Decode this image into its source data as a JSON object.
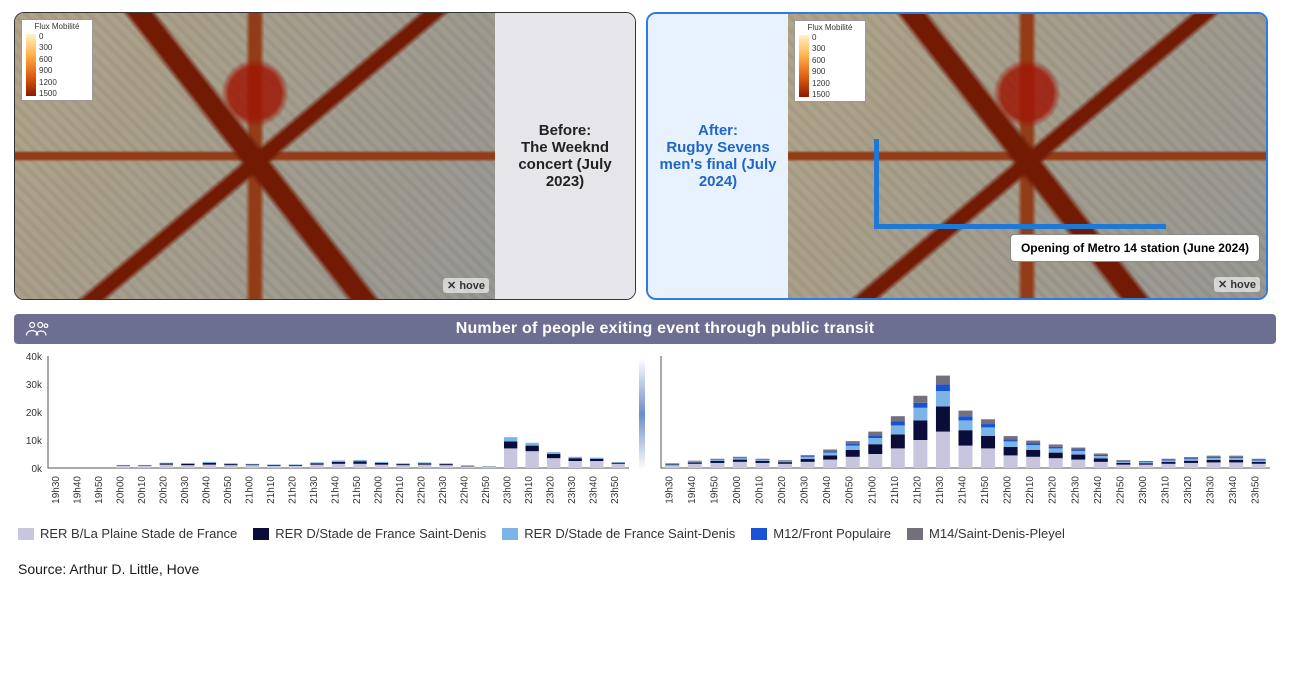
{
  "before_panel": {
    "caption": "Before:\nThe Weeknd concert (July 2023)",
    "hove_brand": "✕ hove",
    "heatmap_legend": {
      "title": "Flux Mobilité",
      "ticks": [
        "0",
        "300",
        "600",
        "900",
        "1200",
        "1500"
      ]
    }
  },
  "after_panel": {
    "caption": "After:\nRugby Sevens men's final (July 2024)",
    "callout": "Opening of Metro 14 station (June 2024)",
    "hove_brand": "✕ hove",
    "heatmap_legend": {
      "title": "Flux Mobilité",
      "ticks": [
        "0",
        "300",
        "600",
        "900",
        "1200",
        "1500"
      ]
    }
  },
  "header": {
    "title": "Number of people exiting event through public transit",
    "bar_bg": "#6c6f92"
  },
  "chart": {
    "type": "stacked-bar",
    "ylim": [
      0,
      40000
    ],
    "yticks": [
      0,
      10000,
      20000,
      30000,
      40000
    ],
    "ytick_labels": [
      "0k",
      "10k",
      "20k",
      "30k",
      "40k"
    ],
    "label_fontsize": 11,
    "tick_fontsize": 10,
    "bar_width": 0.62,
    "background_color": "#ffffff",
    "axis_color": "#555555",
    "categories": [
      "19h30",
      "19h40",
      "19h50",
      "20h00",
      "20h10",
      "20h20",
      "20h30",
      "20h40",
      "20h50",
      "21h00",
      "21h10",
      "21h20",
      "21h30",
      "21h40",
      "21h50",
      "22h00",
      "22h10",
      "22h20",
      "22h30",
      "22h40",
      "22h50",
      "23h00",
      "23h10",
      "23h20",
      "23h30",
      "23h40",
      "23h50"
    ],
    "series": [
      {
        "key": "rerb",
        "label": "RER B/La Plaine Stade de France",
        "color": "#c8c6de"
      },
      {
        "key": "rerd1",
        "label": "RER D/Stade de France Saint-Denis",
        "color": "#0a0d3a"
      },
      {
        "key": "rerd2",
        "label": "RER D/Stade de France Saint-Denis",
        "color": "#7bb4e6"
      },
      {
        "key": "m12",
        "label": "M12/Front Populaire",
        "color": "#1753d4"
      },
      {
        "key": "m14",
        "label": "M14/Saint-Denis-Pleyel",
        "color": "#756f7d"
      }
    ],
    "left": {
      "rerb": [
        0,
        0,
        0,
        800,
        800,
        1200,
        1000,
        1200,
        1000,
        1000,
        800,
        800,
        1200,
        1500,
        1500,
        1200,
        1000,
        1200,
        1000,
        600,
        400,
        7000,
        6000,
        3500,
        2500,
        2500,
        1500
      ],
      "rerd1": [
        0,
        0,
        0,
        200,
        200,
        400,
        500,
        600,
        400,
        300,
        300,
        300,
        500,
        700,
        900,
        600,
        400,
        500,
        400,
        200,
        100,
        2500,
        2000,
        1500,
        1000,
        800,
        400
      ],
      "rerd2": [
        0,
        0,
        0,
        100,
        100,
        300,
        300,
        400,
        300,
        200,
        200,
        200,
        300,
        500,
        500,
        400,
        300,
        300,
        300,
        200,
        100,
        1500,
        1000,
        700,
        500,
        400,
        200
      ],
      "m12": [
        0,
        0,
        0,
        0,
        0,
        0,
        0,
        0,
        0,
        0,
        0,
        0,
        0,
        0,
        0,
        0,
        0,
        0,
        0,
        0,
        0,
        0,
        0,
        0,
        0,
        0,
        0
      ],
      "m14": [
        0,
        0,
        0,
        0,
        0,
        0,
        0,
        0,
        0,
        0,
        0,
        0,
        0,
        0,
        0,
        0,
        0,
        0,
        0,
        0,
        0,
        0,
        0,
        0,
        0,
        0,
        0
      ]
    },
    "right": {
      "rerb": [
        1000,
        1500,
        1800,
        2200,
        1800,
        1500,
        2200,
        3000,
        4000,
        5000,
        7000,
        10000,
        13000,
        8000,
        7000,
        4500,
        4000,
        3500,
        3000,
        2200,
        1200,
        1200,
        1500,
        1800,
        2000,
        2000,
        1500
      ],
      "rerd1": [
        300,
        500,
        700,
        800,
        700,
        600,
        1000,
        1500,
        2500,
        3500,
        5000,
        7000,
        9000,
        5500,
        4500,
        3000,
        2500,
        2000,
        1800,
        1200,
        600,
        500,
        700,
        800,
        900,
        900,
        700
      ],
      "rerd2": [
        200,
        300,
        400,
        500,
        400,
        300,
        700,
        1000,
        1500,
        2200,
        3200,
        4500,
        5500,
        3500,
        3000,
        2000,
        1700,
        1500,
        1300,
        900,
        500,
        400,
        500,
        600,
        700,
        700,
        500
      ],
      "m12": [
        100,
        100,
        200,
        200,
        200,
        200,
        300,
        500,
        700,
        1000,
        1400,
        1800,
        2300,
        1500,
        1200,
        800,
        700,
        600,
        500,
        400,
        200,
        200,
        300,
        300,
        400,
        400,
        300
      ],
      "m14": [
        100,
        200,
        200,
        300,
        200,
        200,
        400,
        600,
        900,
        1300,
        1900,
        2500,
        3200,
        2000,
        1700,
        1100,
        900,
        800,
        700,
        500,
        300,
        200,
        300,
        400,
        400,
        400,
        300
      ]
    }
  },
  "source": "Source: Arthur D. Little, Hove"
}
